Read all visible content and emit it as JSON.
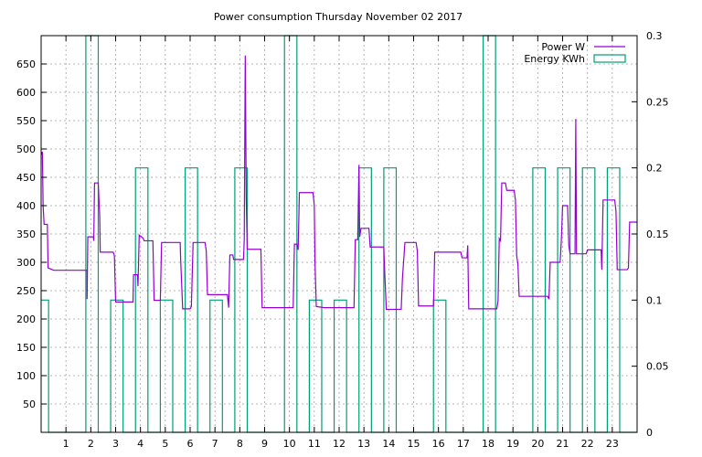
{
  "chart_data": {
    "type": "line",
    "title": "Power consumption Thursday November 02 2017",
    "xlabel": "",
    "ylabel": "",
    "y2label": "",
    "xlim": [
      0,
      24
    ],
    "ylim": [
      0,
      700
    ],
    "y2lim": [
      0,
      0.3
    ],
    "grid": true,
    "legend_position": "top-right",
    "x_ticks": [
      "1",
      "2",
      "3",
      "4",
      "5",
      "6",
      "7",
      "8",
      "9",
      "10",
      "11",
      "12",
      "13",
      "14",
      "15",
      "16",
      "17",
      "18",
      "19",
      "20",
      "21",
      "22",
      "23"
    ],
    "y_ticks": [
      "50",
      "100",
      "150",
      "200",
      "250",
      "300",
      "350",
      "400",
      "450",
      "500",
      "550",
      "600",
      "650"
    ],
    "y2_ticks": [
      "0",
      "0.05",
      "0.1",
      "0.15",
      "0.2",
      "0.25",
      "0.3"
    ],
    "colors": {
      "power": "#9400d3",
      "energy": "#009e73",
      "grid": "#a0a0a0"
    },
    "series": [
      {
        "name": "Power W",
        "axis": "y1",
        "style": "line",
        "points": [
          [
            0.0,
            490
          ],
          [
            0.05,
            495
          ],
          [
            0.08,
            400
          ],
          [
            0.12,
            367
          ],
          [
            0.25,
            367
          ],
          [
            0.28,
            290
          ],
          [
            0.4,
            288
          ],
          [
            0.5,
            286
          ],
          [
            1.85,
            286
          ],
          [
            1.85,
            235
          ],
          [
            1.88,
            345
          ],
          [
            2.1,
            345
          ],
          [
            2.12,
            338
          ],
          [
            2.15,
            440
          ],
          [
            2.3,
            440
          ],
          [
            2.32,
            420
          ],
          [
            2.36,
            380
          ],
          [
            2.38,
            318
          ],
          [
            2.9,
            318
          ],
          [
            2.95,
            312
          ],
          [
            3.0,
            230
          ],
          [
            3.7,
            230
          ],
          [
            3.72,
            278
          ],
          [
            3.88,
            278
          ],
          [
            3.9,
            258
          ],
          [
            3.95,
            348
          ],
          [
            4.1,
            343
          ],
          [
            4.15,
            338
          ],
          [
            4.5,
            338
          ],
          [
            4.55,
            233
          ],
          [
            4.8,
            233
          ],
          [
            4.85,
            335
          ],
          [
            5.6,
            335
          ],
          [
            5.62,
            303
          ],
          [
            5.7,
            218
          ],
          [
            6.0,
            218
          ],
          [
            6.05,
            222
          ],
          [
            6.12,
            335
          ],
          [
            6.6,
            335
          ],
          [
            6.65,
            320
          ],
          [
            6.7,
            243
          ],
          [
            7.5,
            243
          ],
          [
            7.55,
            220
          ],
          [
            7.6,
            313
          ],
          [
            7.72,
            313
          ],
          [
            7.75,
            305
          ],
          [
            8.15,
            305
          ],
          [
            8.18,
            340
          ],
          [
            8.22,
            665
          ],
          [
            8.26,
            412
          ],
          [
            8.3,
            323
          ],
          [
            8.85,
            323
          ],
          [
            8.9,
            220
          ],
          [
            10.15,
            220
          ],
          [
            10.2,
            332
          ],
          [
            10.3,
            332
          ],
          [
            10.35,
            322
          ],
          [
            10.4,
            423
          ],
          [
            10.95,
            423
          ],
          [
            11.0,
            400
          ],
          [
            11.03,
            298
          ],
          [
            11.08,
            222
          ],
          [
            11.4,
            220
          ],
          [
            12.6,
            220
          ],
          [
            12.65,
            340
          ],
          [
            12.75,
            340
          ],
          [
            12.8,
            472
          ],
          [
            12.83,
            345
          ],
          [
            12.88,
            360
          ],
          [
            13.2,
            360
          ],
          [
            13.25,
            327
          ],
          [
            13.8,
            327
          ],
          [
            13.82,
            300
          ],
          [
            13.9,
            217
          ],
          [
            14.5,
            217
          ],
          [
            14.55,
            272
          ],
          [
            14.65,
            335
          ],
          [
            15.1,
            335
          ],
          [
            15.15,
            320
          ],
          [
            15.2,
            223
          ],
          [
            15.8,
            223
          ],
          [
            15.85,
            318
          ],
          [
            16.9,
            318
          ],
          [
            16.95,
            308
          ],
          [
            17.15,
            308
          ],
          [
            17.18,
            330
          ],
          [
            17.22,
            218
          ],
          [
            18.35,
            218
          ],
          [
            18.4,
            232
          ],
          [
            18.45,
            342
          ],
          [
            18.5,
            338
          ],
          [
            18.55,
            440
          ],
          [
            18.7,
            440
          ],
          [
            18.75,
            427
          ],
          [
            19.05,
            427
          ],
          [
            19.1,
            410
          ],
          [
            19.15,
            312
          ],
          [
            19.2,
            297
          ],
          [
            19.25,
            240
          ],
          [
            20.4,
            240
          ],
          [
            20.45,
            235
          ],
          [
            20.5,
            300
          ],
          [
            20.9,
            300
          ],
          [
            20.95,
            340
          ],
          [
            21.0,
            400
          ],
          [
            21.2,
            400
          ],
          [
            21.25,
            330
          ],
          [
            21.3,
            315
          ],
          [
            21.5,
            315
          ],
          [
            21.53,
            553
          ],
          [
            21.56,
            315
          ],
          [
            21.95,
            315
          ],
          [
            22.0,
            322
          ],
          [
            22.55,
            322
          ],
          [
            22.58,
            287
          ],
          [
            22.63,
            410
          ],
          [
            23.1,
            410
          ],
          [
            23.15,
            390
          ],
          [
            23.2,
            287
          ],
          [
            23.6,
            287
          ],
          [
            23.65,
            290
          ],
          [
            23.7,
            371
          ],
          [
            24.0,
            371
          ]
        ]
      },
      {
        "name": "Energy KWh",
        "axis": "y2",
        "style": "steps",
        "points": [
          [
            0.0,
            0.1
          ],
          [
            0.3,
            0.0
          ],
          [
            1.8,
            0.3
          ],
          [
            2.3,
            0.0
          ],
          [
            2.8,
            0.1
          ],
          [
            3.3,
            0.0
          ],
          [
            3.8,
            0.2
          ],
          [
            4.3,
            0.0
          ],
          [
            4.8,
            0.1
          ],
          [
            5.3,
            0.0
          ],
          [
            5.8,
            0.2
          ],
          [
            6.3,
            0.0
          ],
          [
            6.8,
            0.1
          ],
          [
            7.3,
            0.0
          ],
          [
            7.8,
            0.2
          ],
          [
            8.3,
            0.0
          ],
          [
            9.8,
            0.3
          ],
          [
            10.3,
            0.0
          ],
          [
            10.8,
            0.1
          ],
          [
            11.3,
            0.0
          ],
          [
            11.8,
            0.1
          ],
          [
            12.3,
            0.0
          ],
          [
            12.8,
            0.2
          ],
          [
            13.3,
            0.0
          ],
          [
            13.8,
            0.2
          ],
          [
            14.3,
            0.0
          ],
          [
            15.8,
            0.1
          ],
          [
            16.3,
            0.0
          ],
          [
            17.8,
            0.3
          ],
          [
            18.3,
            0.0
          ],
          [
            19.8,
            0.2
          ],
          [
            20.3,
            0.0
          ],
          [
            20.8,
            0.2
          ],
          [
            21.3,
            0.0
          ],
          [
            21.8,
            0.2
          ],
          [
            22.3,
            0.0
          ],
          [
            22.8,
            0.2
          ],
          [
            23.3,
            0.0
          ]
        ]
      }
    ]
  }
}
